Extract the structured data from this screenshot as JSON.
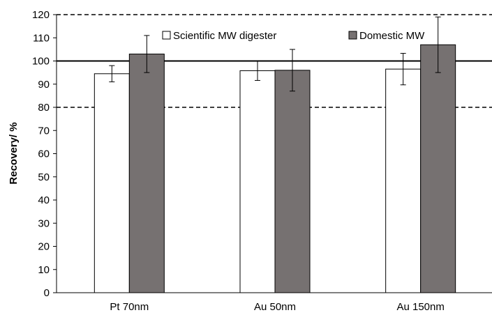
{
  "chart_data": {
    "type": "bar",
    "title": "",
    "xlabel": "",
    "ylabel": "Recovery/ %",
    "ylim": [
      0,
      120
    ],
    "yticks": [
      0,
      10,
      20,
      30,
      40,
      50,
      60,
      70,
      80,
      90,
      100,
      110,
      120
    ],
    "categories": [
      "Pt 70nm",
      "Au 50nm",
      "Au 150nm"
    ],
    "series": [
      {
        "name": "Scientific MW digester",
        "color": "#ffffff",
        "values": [
          94.5,
          95.8,
          96.5
        ],
        "errors": [
          3.5,
          4.2,
          6.8
        ]
      },
      {
        "name": "Domestic MW",
        "color": "#767171",
        "values": [
          103,
          96,
          107
        ],
        "errors": [
          8,
          9,
          12
        ]
      }
    ],
    "reference_lines": [
      {
        "value": 100,
        "style": "solid"
      },
      {
        "value": 80,
        "style": "dashed"
      },
      {
        "value": 120,
        "style": "dashed"
      }
    ],
    "legend_position": "top",
    "grid": false
  }
}
